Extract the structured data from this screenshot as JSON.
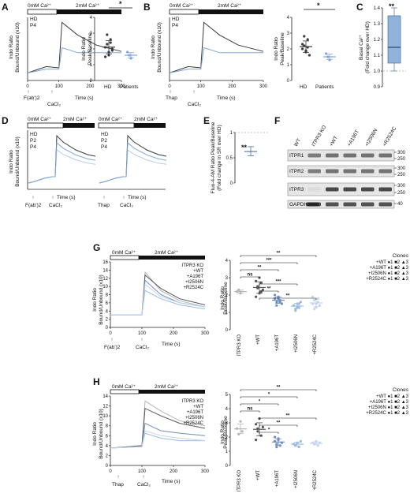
{
  "panel_labels": {
    "a": "A",
    "b": "B",
    "c": "C",
    "d": "D",
    "e": "E",
    "f": "F",
    "g": "G",
    "h": "H"
  },
  "conditions": {
    "zero": "0mM Ca²⁺",
    "two": "2mM Ca²⁺"
  },
  "y_labels": {
    "indo_l1": "Indo Ratio",
    "indo_l2": "Bound/Unbound (x10)",
    "peak_l1": "Indo Ratio",
    "peak_l2": "Peak/Baseline",
    "basal_l1": "Basal Ca²⁺",
    "basal_l2": "(Fold change over HD)",
    "fluo_l1": "Fluo-4-AM Ratio Peak/Baseline",
    "fluo_l2": "(Fold change in SR over HD)"
  },
  "x_label": "Time (s)",
  "stimuli": {
    "fab": "F(ab')2",
    "cacl": "CaCl₂",
    "thap": "Thap"
  },
  "colors": {
    "hd": "#3a3a3a",
    "p4": "#7fa8d6",
    "p2": "#b6cde6",
    "ko": "#b5b5b5",
    "wt": "#555555",
    "a196t": "#6f8fc0",
    "i2506n": "#9dbbe0",
    "r2524c": "#c3d6ee"
  },
  "legends": {
    "ab": [
      "HD",
      "P4"
    ],
    "d": [
      "HD",
      "P2",
      "P4"
    ],
    "gh": [
      "ITPR3 KO",
      "+WT",
      "+A196T",
      "+I2506N",
      "+R2524C"
    ]
  },
  "clones": {
    "title": "Clones",
    "items": [
      "+WT ●1 ■2 ▲3",
      "+A196T ●1 ■2 ▲3",
      "+I2506N ●1 ■2 ▲3",
      "+R2524C ●1 ■2 ▲3"
    ]
  },
  "groups_ab": [
    "HD",
    "Patients"
  ],
  "groups_gh": [
    "ITPR3\nKO",
    "+WT",
    "+A196T",
    "+I2506N",
    "+R2524C"
  ],
  "blot": {
    "columns": [
      "WT",
      "ITPR3 KO",
      "+WT",
      "+A196T",
      "+I2506N",
      "+R2524C"
    ],
    "rows": [
      "ITPR1",
      "ITPR2",
      "ITPR3",
      "GAPDH"
    ],
    "markers": [
      "300",
      "250",
      "300",
      "250",
      "300",
      "250",
      "40"
    ]
  },
  "sig": {
    "a": "*",
    "b": "*",
    "c": "**",
    "e": "**",
    "ns": "ns"
  },
  "chart_data": [
    {
      "panel": "A",
      "type": "line",
      "x": [
        0,
        60,
        100,
        110,
        160,
        220,
        300
      ],
      "series": [
        {
          "name": "HD",
          "values": [
            0.3,
            0.55,
            0.5,
            2.3,
            1.8,
            1.4,
            1.15
          ]
        },
        {
          "name": "P4",
          "values": [
            0.3,
            0.45,
            0.45,
            1.3,
            1.1,
            1.1,
            1.1
          ]
        }
      ],
      "xlim": [
        0,
        300
      ],
      "ylim": [
        0,
        2.5
      ],
      "xlabel": "Time (s)",
      "ylabel": "Indo Ratio Bound/Unbound (x10)"
    },
    {
      "panel": "A",
      "type": "scatter",
      "categories": [
        "HD",
        "Patients"
      ],
      "values": [
        [
          2.1,
          2.3,
          1.8,
          2.6,
          2.0,
          1.5,
          2.9,
          1.6,
          2.4,
          1.9
        ],
        [
          1.8,
          1.6,
          1.4
        ]
      ],
      "ylim": [
        0,
        4
      ],
      "yticks": [
        0,
        1,
        2,
        3,
        4
      ],
      "ylabel": "Indo Ratio Peak/Baseline"
    },
    {
      "panel": "B",
      "type": "line",
      "x": [
        0,
        60,
        100,
        110,
        160,
        220,
        300
      ],
      "series": [
        {
          "name": "HD",
          "values": [
            0.3,
            0.55,
            0.5,
            2.3,
            1.8,
            1.4,
            1.15
          ]
        },
        {
          "name": "P4",
          "values": [
            0.3,
            0.45,
            0.45,
            1.3,
            1.1,
            1.1,
            1.1
          ]
        }
      ],
      "xlim": [
        0,
        300
      ],
      "ylim": [
        0,
        2.5
      ],
      "xlabel": "Time (s)"
    },
    {
      "panel": "B",
      "type": "scatter",
      "categories": [
        "HD",
        "Patients"
      ],
      "values": [
        [
          2.0,
          2.2,
          1.9,
          2.6,
          1.6,
          2.3,
          2.8,
          1.8,
          2.1
        ],
        [
          1.7,
          1.5,
          1.3
        ]
      ],
      "ylim": [
        0,
        4
      ],
      "yticks": [
        0,
        1,
        2,
        3,
        4
      ]
    },
    {
      "panel": "C",
      "type": "box",
      "ylim": [
        0.9,
        1.4
      ],
      "yticks": [
        0.9,
        1.0,
        1.1,
        1.2,
        1.3,
        1.4
      ],
      "box": {
        "min": 1.0,
        "q1": 1.05,
        "median": 1.15,
        "q3": 1.35,
        "max": 1.4
      }
    },
    {
      "panel": "E",
      "type": "scatter",
      "ylim": [
        0,
        1.0
      ],
      "yticks": [
        0,
        0.5,
        1.0
      ],
      "values": [
        0.68,
        0.62,
        0.57
      ],
      "reference": 1.0
    },
    {
      "panel": "G",
      "type": "line",
      "x": [
        0,
        100,
        110,
        160,
        220,
        300
      ],
      "series": [
        {
          "name": "ITPR3 KO",
          "values": [
            3.0,
            3.0,
            13.5,
            9.0,
            6.5,
            5.0
          ]
        },
        {
          "name": "+WT",
          "values": [
            3.0,
            3.0,
            12.8,
            9.5,
            7.0,
            5.5
          ]
        },
        {
          "name": "+A196T",
          "values": [
            3.0,
            3.0,
            11.5,
            8.0,
            6.0,
            5.0
          ]
        },
        {
          "name": "+I2506N",
          "values": [
            3.0,
            3.0,
            9.0,
            7.0,
            5.5,
            4.5
          ]
        },
        {
          "name": "+R2524C",
          "values": [
            3.0,
            3.0,
            10.5,
            7.5,
            6.0,
            5.0
          ]
        }
      ],
      "xlim": [
        0,
        300
      ],
      "ylim": [
        0,
        16
      ],
      "yticks": [
        0,
        2,
        4,
        6,
        8,
        10,
        12,
        14,
        16
      ],
      "xticks": [
        0,
        100,
        200,
        300
      ]
    },
    {
      "panel": "G",
      "type": "scatter",
      "categories": [
        "ITPR3 KO",
        "+WT",
        "+A196T",
        "+I2506N",
        "+R2524C"
      ],
      "values": [
        [
          2.2,
          2.3,
          2.1
        ],
        [
          2.8,
          2.5,
          2.1,
          2.7,
          2.3,
          1.9,
          2.4,
          3.0,
          2.2
        ],
        [
          1.8,
          1.6,
          1.9,
          1.7,
          1.5,
          2.0,
          1.4,
          1.8,
          1.6
        ],
        [
          1.4,
          1.2,
          1.5,
          1.3,
          1.6,
          1.4,
          1.1,
          1.3,
          1.5
        ],
        [
          1.5,
          1.7,
          1.3,
          1.6,
          1.4,
          1.9,
          1.2,
          1.5,
          1.8
        ]
      ],
      "ylim": [
        0,
        4
      ],
      "yticks": [
        0,
        1,
        2,
        3,
        4
      ]
    },
    {
      "panel": "H",
      "type": "line",
      "x": [
        0,
        100,
        110,
        160,
        220,
        300
      ],
      "series": [
        {
          "name": "ITPR3 KO",
          "values": [
            3.5,
            4.0,
            13.0,
            11.0,
            9.0,
            8.0
          ]
        },
        {
          "name": "+WT",
          "values": [
            3.5,
            4.0,
            11.5,
            10.0,
            8.5,
            7.5
          ]
        },
        {
          "name": "+A196T",
          "values": [
            3.5,
            3.8,
            8.5,
            7.0,
            6.5,
            6.0
          ]
        },
        {
          "name": "+I2506N",
          "values": [
            3.5,
            3.8,
            6.5,
            5.5,
            5.0,
            5.0
          ]
        },
        {
          "name": "+R2524C",
          "values": [
            3.5,
            3.8,
            7.0,
            6.0,
            5.5,
            5.0
          ]
        }
      ],
      "xlim": [
        0,
        300
      ],
      "ylim": [
        0,
        14
      ],
      "yticks": [
        0,
        2,
        4,
        6,
        8,
        10,
        12,
        14
      ],
      "xticks": [
        0,
        100,
        200,
        300
      ]
    },
    {
      "panel": "H",
      "type": "scatter",
      "categories": [
        "ITPR3 KO",
        "+WT",
        "+A196T",
        "+I2506N",
        "+R2524C"
      ],
      "values": [
        [
          2.6,
          2.2,
          3.1,
          2.4
        ],
        [
          2.9,
          2.4,
          3.3,
          2.1,
          2.7,
          1.8,
          2.6
        ],
        [
          1.7,
          1.5,
          1.9,
          1.4,
          1.6,
          2.0,
          1.3,
          1.8
        ],
        [
          1.5,
          1.4,
          1.6,
          1.3,
          1.7,
          1.5
        ],
        [
          1.6,
          1.5,
          1.7,
          1.4,
          1.6
        ]
      ],
      "ylim": [
        0,
        5
      ],
      "yticks": [
        0,
        1,
        2,
        3,
        4,
        5
      ]
    }
  ]
}
